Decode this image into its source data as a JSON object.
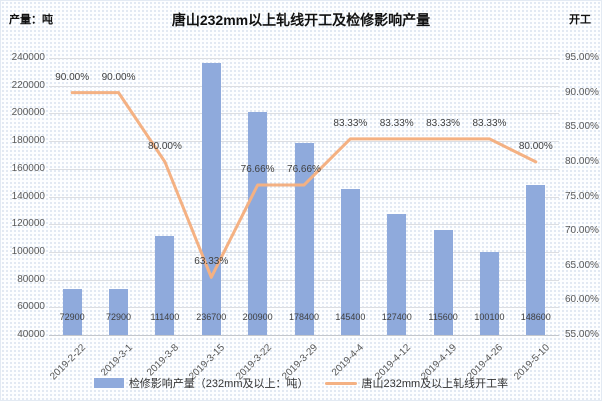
{
  "header": {
    "left_axis_title": "产量：吨",
    "title": "唐山232mm以上轧线开工及检修影响产量",
    "right_axis_title": "开工"
  },
  "colors": {
    "bar": "#8FAADC",
    "line": "#F4B183",
    "gridline": "#DCDEE2",
    "tick_text": "#595959",
    "label_text": "#3F3F3F"
  },
  "legend": {
    "bar_label": "检修影响产量（232mm及以上：吨）",
    "line_label": "唐山232mm及以上轧线开工率"
  },
  "chart_data": {
    "type": "combo-bar-line",
    "title": "唐山232mm以上轧线开工及检修影响产量",
    "categories": [
      "2019-2-22",
      "2019-3-1",
      "2019-3-8",
      "2019-3-15",
      "2019-3-22",
      "2019-3-29",
      "2019-4-4",
      "2019-4-12",
      "2019-4-19",
      "2019-4-26",
      "2019-5-10"
    ],
    "series": [
      {
        "name": "检修影响产量（232mm及以上：吨）",
        "type": "bar",
        "axis": "left",
        "color": "#8FAADC",
        "values": [
          72900,
          72900,
          111400,
          236700,
          200900,
          178400,
          145400,
          127400,
          115600,
          100100,
          148600
        ],
        "labels": [
          "72900",
          "72900",
          "111400",
          "236700",
          "200900",
          "178400",
          "145400",
          "127400",
          "115600",
          "100100",
          "148600"
        ]
      },
      {
        "name": "唐山232mm及以上轧线开工率",
        "type": "line",
        "axis": "right",
        "color": "#F4B183",
        "values": [
          90,
          90,
          80,
          63.33,
          76.66,
          76.66,
          83.33,
          83.33,
          83.33,
          83.33,
          80
        ],
        "labels": [
          "90.00%",
          "90.00%",
          "80.00%",
          "63.33%",
          "76.66%",
          "76.66%",
          "83.33%",
          "83.33%",
          "83.33%",
          "83.33%",
          "80.00%"
        ]
      }
    ],
    "left_axis": {
      "title": "产量：吨",
      "min": 40000,
      "max": 240000,
      "ticks": [
        "240000",
        "220000",
        "200000",
        "180000",
        "160000",
        "140000",
        "120000",
        "100000",
        "80000",
        "60000",
        "40000"
      ]
    },
    "right_axis": {
      "title": "开工",
      "min": 55,
      "max": 95,
      "ticks": [
        "95.00%",
        "90.00%",
        "85.00%",
        "80.00%",
        "75.00%",
        "70.00%",
        "65.00%",
        "60.00%",
        "55.00%"
      ]
    },
    "grid": true,
    "legend_position": "bottom"
  }
}
